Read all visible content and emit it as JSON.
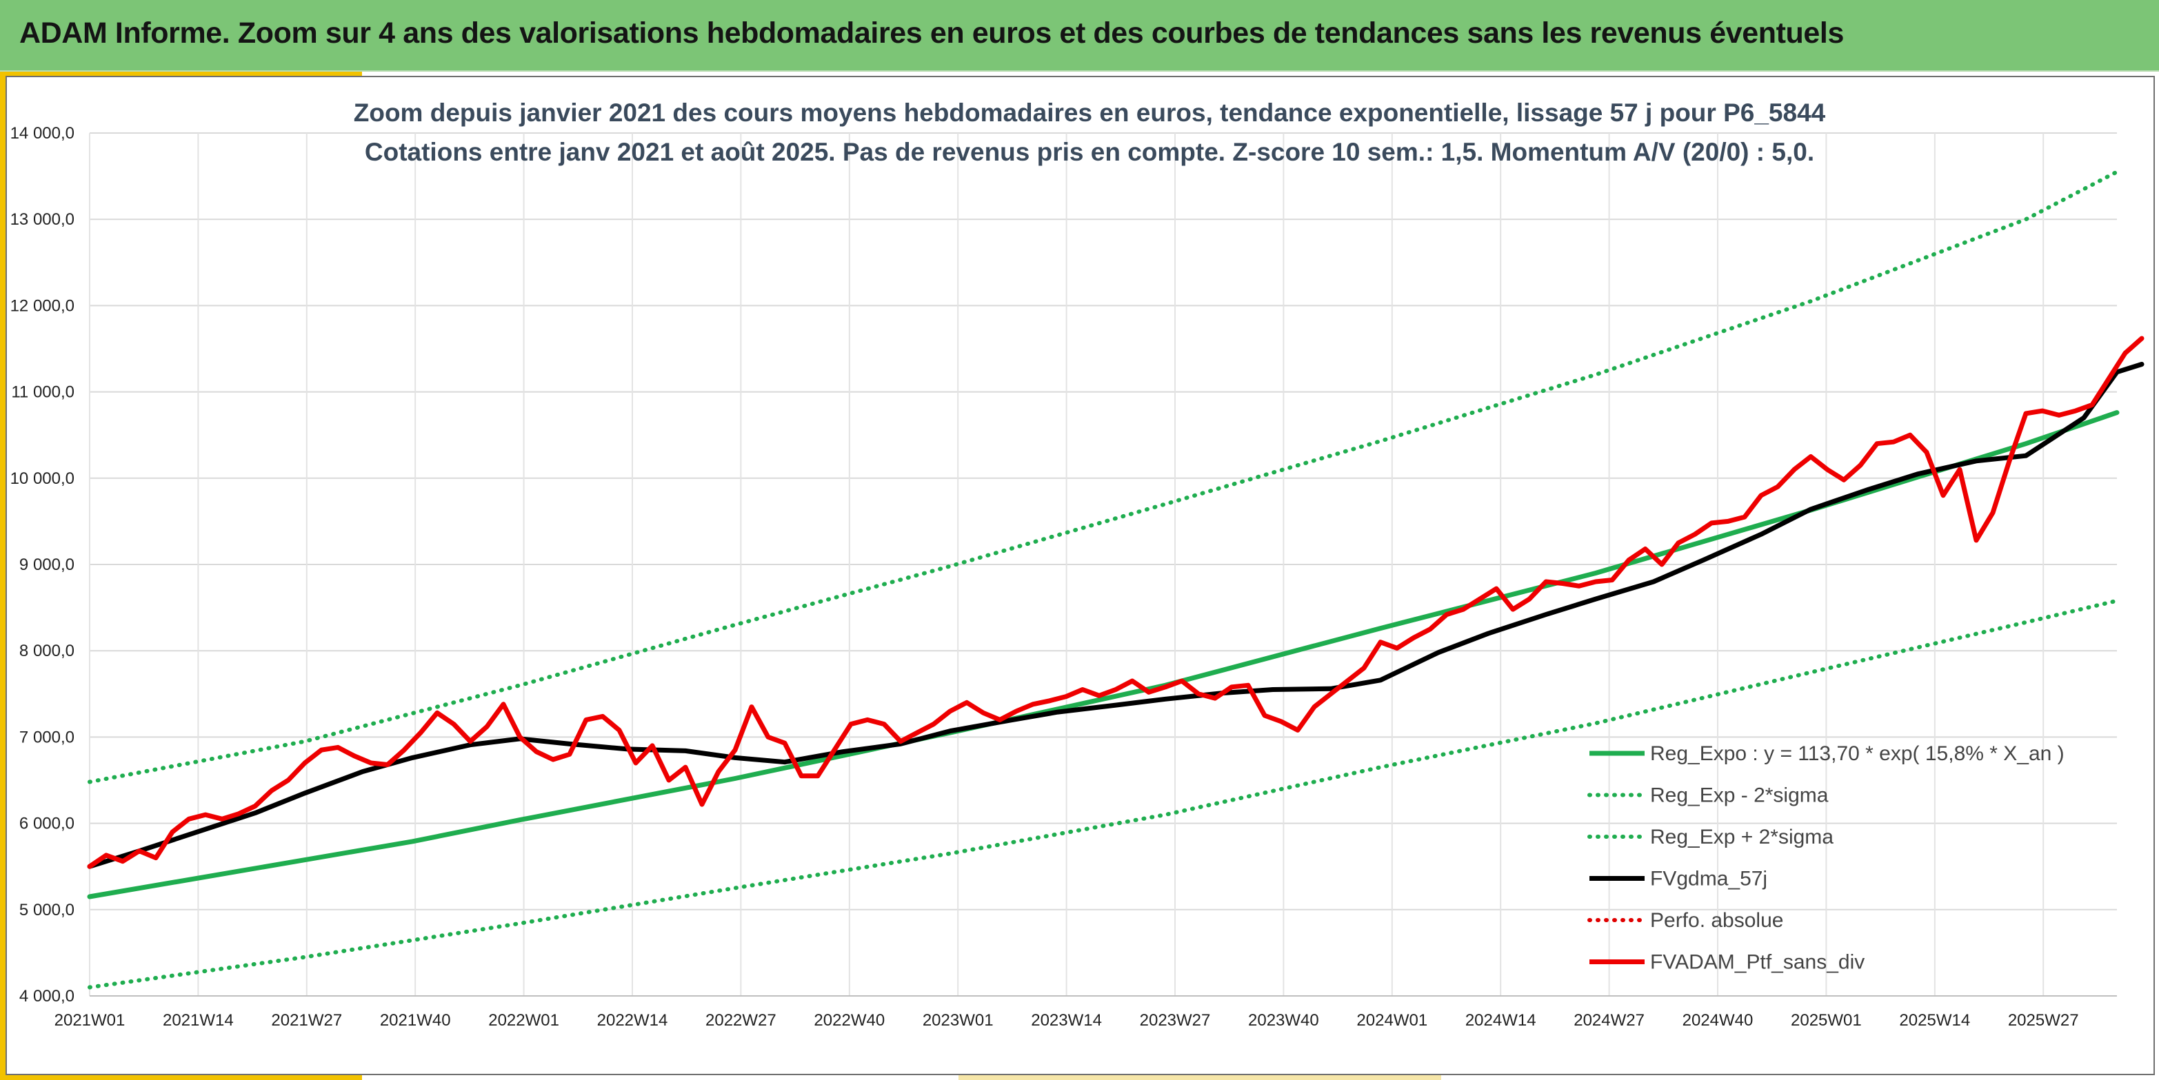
{
  "header": {
    "title": "ADAM Informe. Zoom sur 4 ans des valorisations hebdomadaires en euros et des courbes de tendances sans les revenus éventuels"
  },
  "colors": {
    "banner": "#7cc576",
    "accent": "#f2c200",
    "reg_expo": "#1fad4f",
    "sigma": "#1fad4f",
    "fvgdma": "#000000",
    "perfo": "#e00000",
    "fvadam": "#ee0000",
    "title_text": "#3a4a5c"
  },
  "chart_data": {
    "type": "line",
    "title": "Zoom depuis janvier 2021 des cours moyens hebdomadaires en euros, tendance exponentielle, lissage 57 j pour P6_5844",
    "subtitle": "Cotations entre janv 2021 et août 2025. Pas de revenus pris en compte. Z-score 10 sem.: 1,5. Momentum A/V (20/0) : 5,0.",
    "xlabel": "",
    "ylabel": "",
    "ylim": [
      4000,
      14000
    ],
    "yticks": [
      "4 000,0",
      "5 000,0",
      "6 000,0",
      "7 000,0",
      "8 000,0",
      "9 000,0",
      "10 000,0",
      "11 000,0",
      "12 000,0",
      "13 000,0",
      "14 000,0"
    ],
    "ytick_values": [
      4000,
      5000,
      6000,
      7000,
      8000,
      9000,
      10000,
      11000,
      12000,
      13000,
      14000
    ],
    "xticks": [
      "2021W01",
      "2021W14",
      "2021W27",
      "2021W40",
      "2022W01",
      "2022W14",
      "2022W27",
      "2022W40",
      "2023W01",
      "2023W14",
      "2023W27",
      "2023W40",
      "2024W01",
      "2024W14",
      "2024W27",
      "2024W40",
      "2025W01",
      "2025W14",
      "2025W27"
    ],
    "week_span": [
      0,
      245
    ],
    "grid": true,
    "legend_position": "bottom-right",
    "series": [
      {
        "name": "Reg_Expo : y = 113,70 * exp( 15,8% *  X_an )",
        "color": "#1fad4f",
        "style": "solid",
        "width": 7,
        "points": [
          [
            0,
            5150
          ],
          [
            39,
            5790
          ],
          [
            52,
            6040
          ],
          [
            78,
            6520
          ],
          [
            104,
            7050
          ],
          [
            130,
            7600
          ],
          [
            156,
            8260
          ],
          [
            182,
            8900
          ],
          [
            208,
            9630
          ],
          [
            234,
            10400
          ],
          [
            245,
            10760
          ]
        ]
      },
      {
        "name": "Reg_Exp - 2*sigma",
        "color": "#1fad4f",
        "style": "dotted",
        "width": 6,
        "points": [
          [
            0,
            4100
          ],
          [
            26,
            4450
          ],
          [
            52,
            4840
          ],
          [
            78,
            5250
          ],
          [
            104,
            5650
          ],
          [
            130,
            6100
          ],
          [
            156,
            6650
          ],
          [
            182,
            7160
          ],
          [
            208,
            7750
          ],
          [
            234,
            8330
          ],
          [
            245,
            8580
          ]
        ]
      },
      {
        "name": "Reg_Exp + 2*sigma",
        "color": "#1fad4f",
        "style": "dotted",
        "width": 6,
        "points": [
          [
            0,
            6480
          ],
          [
            26,
            6950
          ],
          [
            52,
            7600
          ],
          [
            78,
            8300
          ],
          [
            104,
            8980
          ],
          [
            130,
            9700
          ],
          [
            156,
            10430
          ],
          [
            182,
            11200
          ],
          [
            208,
            12050
          ],
          [
            234,
            13000
          ],
          [
            245,
            13550
          ]
        ]
      },
      {
        "name": "FVgdma_57j",
        "color": "#000000",
        "style": "solid",
        "width": 7,
        "points": [
          [
            0,
            5500
          ],
          [
            6,
            5680
          ],
          [
            13,
            5900
          ],
          [
            20,
            6120
          ],
          [
            26,
            6350
          ],
          [
            33,
            6600
          ],
          [
            39,
            6760
          ],
          [
            46,
            6910
          ],
          [
            52,
            6980
          ],
          [
            58,
            6920
          ],
          [
            65,
            6860
          ],
          [
            72,
            6840
          ],
          [
            78,
            6760
          ],
          [
            84,
            6710
          ],
          [
            91,
            6830
          ],
          [
            98,
            6920
          ],
          [
            104,
            7070
          ],
          [
            111,
            7190
          ],
          [
            117,
            7290
          ],
          [
            124,
            7370
          ],
          [
            130,
            7440
          ],
          [
            137,
            7510
          ],
          [
            143,
            7550
          ],
          [
            150,
            7560
          ],
          [
            156,
            7660
          ],
          [
            163,
            7980
          ],
          [
            169,
            8200
          ],
          [
            176,
            8420
          ],
          [
            182,
            8600
          ],
          [
            189,
            8800
          ],
          [
            195,
            9050
          ],
          [
            202,
            9350
          ],
          [
            208,
            9640
          ],
          [
            215,
            9870
          ],
          [
            221,
            10050
          ],
          [
            228,
            10200
          ],
          [
            234,
            10260
          ],
          [
            241,
            10700
          ],
          [
            245,
            11230
          ],
          [
            248,
            11320
          ]
        ]
      },
      {
        "name": "Perfo. absolue",
        "color": "#e00000",
        "style": "dotted",
        "width": 6,
        "points": []
      },
      {
        "name": "FVADAM_Ptf_sans_div",
        "color": "#ee0000",
        "style": "solid",
        "width": 7,
        "points": [
          [
            0,
            5500
          ],
          [
            2,
            5630
          ],
          [
            4,
            5560
          ],
          [
            6,
            5680
          ],
          [
            8,
            5600
          ],
          [
            10,
            5900
          ],
          [
            12,
            6050
          ],
          [
            14,
            6100
          ],
          [
            16,
            6050
          ],
          [
            18,
            6110
          ],
          [
            20,
            6200
          ],
          [
            22,
            6380
          ],
          [
            24,
            6500
          ],
          [
            26,
            6700
          ],
          [
            28,
            6850
          ],
          [
            30,
            6880
          ],
          [
            32,
            6780
          ],
          [
            34,
            6700
          ],
          [
            36,
            6680
          ],
          [
            38,
            6850
          ],
          [
            40,
            7050
          ],
          [
            42,
            7280
          ],
          [
            44,
            7150
          ],
          [
            46,
            6950
          ],
          [
            48,
            7120
          ],
          [
            50,
            7380
          ],
          [
            52,
            7000
          ],
          [
            54,
            6830
          ],
          [
            56,
            6740
          ],
          [
            58,
            6800
          ],
          [
            60,
            7200
          ],
          [
            62,
            7240
          ],
          [
            64,
            7080
          ],
          [
            66,
            6700
          ],
          [
            68,
            6900
          ],
          [
            70,
            6500
          ],
          [
            72,
            6650
          ],
          [
            74,
            6220
          ],
          [
            76,
            6600
          ],
          [
            78,
            6850
          ],
          [
            80,
            7350
          ],
          [
            82,
            7000
          ],
          [
            84,
            6930
          ],
          [
            86,
            6550
          ],
          [
            88,
            6550
          ],
          [
            90,
            6850
          ],
          [
            92,
            7150
          ],
          [
            94,
            7200
          ],
          [
            96,
            7150
          ],
          [
            98,
            6950
          ],
          [
            100,
            7050
          ],
          [
            102,
            7150
          ],
          [
            104,
            7300
          ],
          [
            106,
            7400
          ],
          [
            108,
            7280
          ],
          [
            110,
            7200
          ],
          [
            112,
            7300
          ],
          [
            114,
            7380
          ],
          [
            116,
            7420
          ],
          [
            118,
            7470
          ],
          [
            120,
            7550
          ],
          [
            122,
            7480
          ],
          [
            124,
            7550
          ],
          [
            126,
            7650
          ],
          [
            128,
            7520
          ],
          [
            130,
            7580
          ],
          [
            132,
            7650
          ],
          [
            134,
            7500
          ],
          [
            136,
            7450
          ],
          [
            138,
            7580
          ],
          [
            140,
            7600
          ],
          [
            142,
            7250
          ],
          [
            144,
            7180
          ],
          [
            146,
            7080
          ],
          [
            148,
            7350
          ],
          [
            150,
            7500
          ],
          [
            152,
            7650
          ],
          [
            154,
            7800
          ],
          [
            156,
            8100
          ],
          [
            158,
            8030
          ],
          [
            160,
            8150
          ],
          [
            162,
            8250
          ],
          [
            164,
            8420
          ],
          [
            166,
            8480
          ],
          [
            168,
            8600
          ],
          [
            170,
            8720
          ],
          [
            172,
            8480
          ],
          [
            174,
            8600
          ],
          [
            176,
            8800
          ],
          [
            178,
            8780
          ],
          [
            180,
            8750
          ],
          [
            182,
            8800
          ],
          [
            184,
            8820
          ],
          [
            186,
            9050
          ],
          [
            188,
            9180
          ],
          [
            190,
            9000
          ],
          [
            192,
            9250
          ],
          [
            194,
            9350
          ],
          [
            196,
            9480
          ],
          [
            198,
            9500
          ],
          [
            200,
            9550
          ],
          [
            202,
            9800
          ],
          [
            204,
            9900
          ],
          [
            206,
            10100
          ],
          [
            208,
            10250
          ],
          [
            210,
            10100
          ],
          [
            212,
            9980
          ],
          [
            214,
            10150
          ],
          [
            216,
            10400
          ],
          [
            218,
            10420
          ],
          [
            220,
            10500
          ],
          [
            222,
            10300
          ],
          [
            224,
            9800
          ],
          [
            226,
            10100
          ],
          [
            228,
            9280
          ],
          [
            230,
            9600
          ],
          [
            232,
            10200
          ],
          [
            234,
            10750
          ],
          [
            236,
            10780
          ],
          [
            238,
            10730
          ],
          [
            240,
            10780
          ],
          [
            242,
            10850
          ],
          [
            244,
            11150
          ],
          [
            246,
            11450
          ],
          [
            248,
            11620
          ]
        ]
      }
    ]
  }
}
